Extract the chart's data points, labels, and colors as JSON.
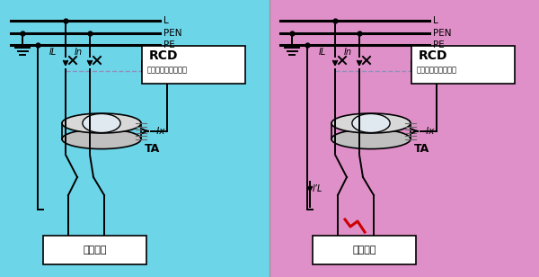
{
  "bg_left": "#6dd5e8",
  "bg_right": "#e090c8",
  "line_color": "#000000",
  "dashed_color": "#9090bb",
  "rcd_box_color": "#ffffff",
  "wire_color": "#111111",
  "red_color": "#cc0000",
  "border_color": "#aaaaaa",
  "text_L": "L",
  "text_PEN": "PEN",
  "text_PE": "PE",
  "text_RCD1": "RCD",
  "text_RCD2": "漏电检测及控制装置",
  "text_Ix": " Ix",
  "text_TA": "TA",
  "text_load": "用电设备",
  "text_IL": "IL",
  "text_In": "In",
  "text_IL2": "I’L",
  "fig_width": 6.0,
  "fig_height": 3.08
}
